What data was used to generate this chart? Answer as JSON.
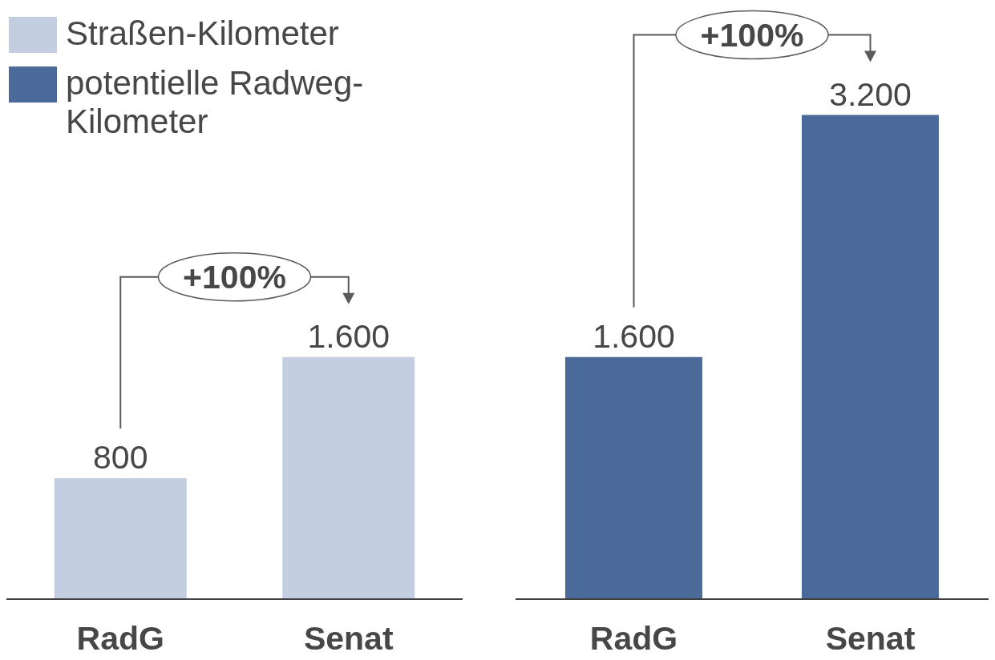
{
  "chart_data": [
    {
      "type": "bar",
      "categories": [
        "RadG",
        "Senat"
      ],
      "series": [
        {
          "name": "Straßen-Kilometer",
          "color": "#c3cee1",
          "values": [
            800,
            1600
          ],
          "value_labels": [
            "800",
            "1.600"
          ]
        }
      ],
      "tick_labels": "x",
      "legend": "top left",
      "annotations": [
        "+100%"
      ]
    },
    {
      "type": "bar",
      "categories": [
        "RadG",
        "Senat"
      ],
      "series": [
        {
          "name": "potentielle Radweg-Kilometer",
          "color": "#4a6b9a",
          "values": [
            1600,
            3200
          ],
          "value_labels": [
            "1.600",
            "3.200"
          ]
        }
      ],
      "tick_labels": "x",
      "legend": "top left",
      "annotations": [
        "+100%"
      ]
    }
  ]
}
